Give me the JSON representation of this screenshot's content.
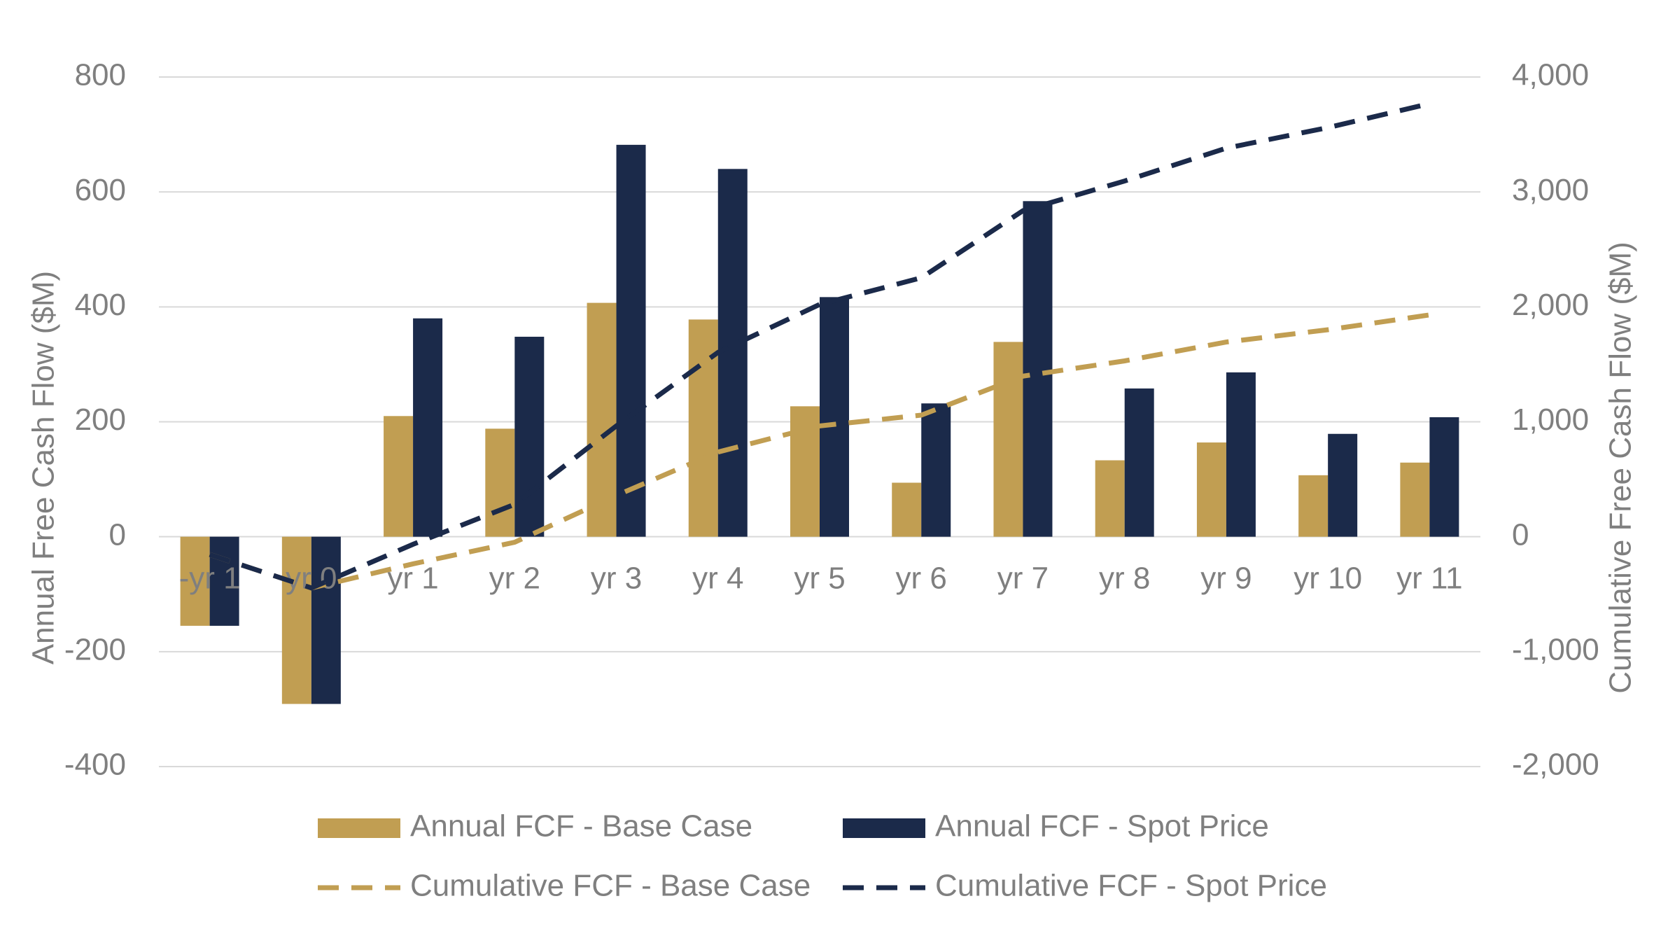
{
  "chart_data": {
    "type": "bar",
    "y_axis_label": "Annual Free Cash Flow ($M)",
    "y2_axis_label": "Cumulative Free  Cash Flow ($M)",
    "categories": [
      "-yr 1",
      "yr 0",
      "yr 1",
      "yr 2",
      "yr 3",
      "yr 4",
      "yr 5",
      "yr 6",
      "yr 7",
      "yr 8",
      "yr 9",
      "yr 10",
      "yr 11"
    ],
    "series": [
      {
        "name": "Annual FCF - Base Case",
        "type": "bar",
        "color": "#c19e52",
        "axis": "y",
        "values": [
          -155,
          -291,
          210,
          188,
          407,
          378,
          227,
          94,
          339,
          133,
          164,
          107,
          129
        ]
      },
      {
        "name": "Annual FCF - Spot Price",
        "type": "bar",
        "color": "#1b2a4a",
        "axis": "y",
        "values": [
          -155,
          -291,
          380,
          348,
          682,
          640,
          417,
          232,
          584,
          258,
          286,
          179,
          208
        ]
      },
      {
        "name": "Cumulative FCF - Base Case",
        "type": "line",
        "dashed": true,
        "color": "#c19e52",
        "axis": "y2",
        "values": [
          -155,
          -446,
          -236,
          -48,
          359,
          737,
          964,
          1058,
          1397,
          1530,
          1694,
          1801,
          1930
        ]
      },
      {
        "name": "Cumulative FCF - Spot Price",
        "type": "line",
        "dashed": true,
        "color": "#1b2a4a",
        "axis": "y2",
        "values": [
          -155,
          -446,
          -66,
          282,
          964,
          1604,
          2021,
          2253,
          2837,
          3095,
          3381,
          3560,
          3768
        ]
      }
    ],
    "ylim": [
      -400,
      800
    ],
    "yticks": [
      -400,
      -200,
      0,
      200,
      400,
      600,
      800
    ],
    "y2lim": [
      -2000,
      4000
    ],
    "y2ticks": [
      {
        "value": -2000,
        "label": "-2,000"
      },
      {
        "value": -1000,
        "label": "-1,000"
      },
      0,
      {
        "value": 1000,
        "label": "1,000"
      },
      {
        "value": 2000,
        "label": "2,000"
      },
      {
        "value": 3000,
        "label": "3,000"
      },
      {
        "value": 4000,
        "label": "4,000"
      }
    ],
    "grid": true,
    "legend": "bottom"
  }
}
